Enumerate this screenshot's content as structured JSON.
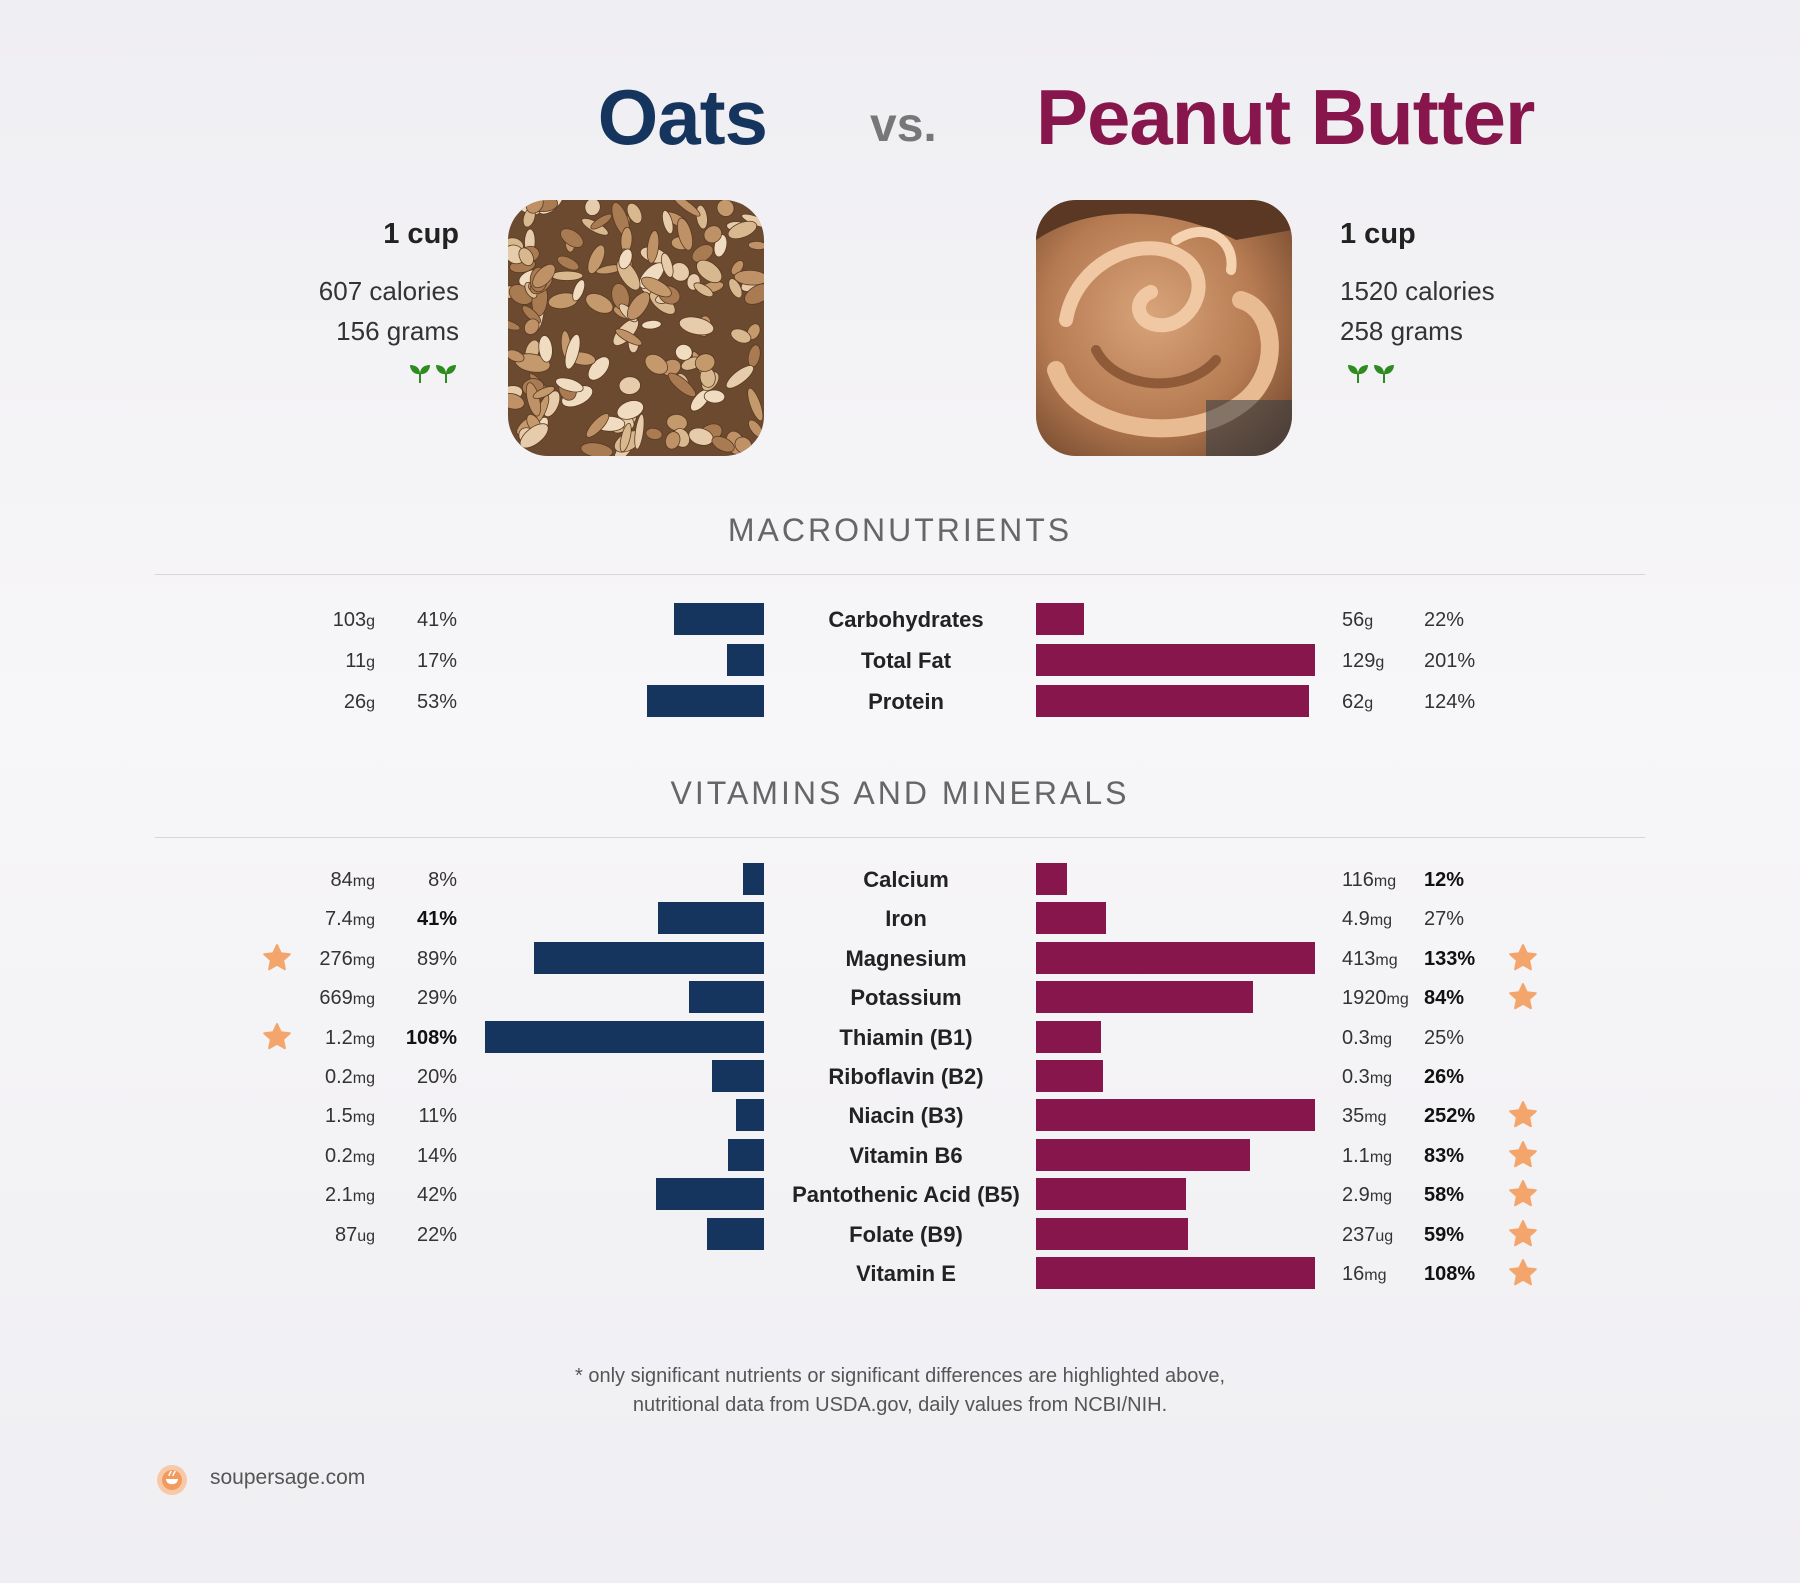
{
  "header": {
    "left_title": "Oats",
    "vs": "vs.",
    "right_title": "Peanut Butter"
  },
  "left_food": {
    "serving": "1 cup",
    "calories": "607 calories",
    "grams": "156 grams",
    "badge_icon": "sprout-icon",
    "image": "oats-photo"
  },
  "right_food": {
    "serving": "1 cup",
    "calories": "1520 calories",
    "grams": "258 grams",
    "badge_icon": "sprout-icon",
    "image": "peanut-butter-photo"
  },
  "sections": {
    "macros": "MACRONUTRIENTS",
    "vitamins": "VITAMINS AND MINERALS"
  },
  "footnote": {
    "line1": "* only significant nutrients or significant differences are highlighted above,",
    "line2": "nutritional data from USDA.gov, daily values from NCBI/NIH."
  },
  "site": "soupersage.com",
  "colors": {
    "left": "#16355e",
    "right": "#86164b",
    "star": "#f4a56c"
  },
  "chart_data": [
    {
      "type": "bar",
      "title": "MACRONUTRIENTS",
      "categories": [
        "Carbohydrates",
        "Total Fat",
        "Protein"
      ],
      "series": [
        {
          "name": "Oats",
          "values": [
            41,
            17,
            53
          ],
          "amounts": [
            "103",
            "11",
            "26"
          ],
          "units": [
            "g",
            "g",
            "g"
          ],
          "pct_labels": [
            "41%",
            "17%",
            "53%"
          ]
        },
        {
          "name": "Peanut Butter",
          "values": [
            22,
            201,
            124
          ],
          "amounts": [
            "56",
            "129",
            "62"
          ],
          "units": [
            "g",
            "g",
            "g"
          ],
          "pct_labels": [
            "22%",
            "201%",
            "124%"
          ]
        }
      ]
    },
    {
      "type": "bar",
      "title": "VITAMINS AND MINERALS",
      "categories": [
        "Calcium",
        "Iron",
        "Magnesium",
        "Potassium",
        "Thiamin (B1)",
        "Riboflavin (B2)",
        "Niacin (B3)",
        "Vitamin B6",
        "Pantothenic Acid (B5)",
        "Folate (B9)",
        "Vitamin E"
      ],
      "series": [
        {
          "name": "Oats",
          "values": [
            8,
            41,
            89,
            29,
            108,
            20,
            11,
            14,
            42,
            22,
            null
          ],
          "amounts": [
            "84",
            "7.4",
            "276",
            "669",
            "1.2",
            "0.2",
            "1.5",
            "0.2",
            "2.1",
            "87",
            ""
          ],
          "units": [
            "mg",
            "mg",
            "mg",
            "mg",
            "mg",
            "mg",
            "mg",
            "mg",
            "mg",
            "ug",
            ""
          ],
          "pct_labels": [
            "8%",
            "41%",
            "89%",
            "29%",
            "108%",
            "20%",
            "11%",
            "14%",
            "42%",
            "22%",
            ""
          ],
          "bold": [
            false,
            true,
            false,
            false,
            true,
            false,
            false,
            false,
            false,
            false,
            false
          ],
          "starred": [
            false,
            false,
            true,
            false,
            true,
            false,
            false,
            false,
            false,
            false,
            false
          ]
        },
        {
          "name": "Peanut Butter",
          "values": [
            12,
            27,
            133,
            84,
            25,
            26,
            252,
            83,
            58,
            59,
            108
          ],
          "amounts": [
            "116",
            "4.9",
            "413",
            "1920",
            "0.3",
            "0.3",
            "35",
            "1.1",
            "2.9",
            "237",
            "16"
          ],
          "units": [
            "mg",
            "mg",
            "mg",
            "mg",
            "mg",
            "mg",
            "mg",
            "mg",
            "mg",
            "ug",
            "mg"
          ],
          "pct_labels": [
            "12%",
            "27%",
            "133%",
            "84%",
            "25%",
            "26%",
            "252%",
            "83%",
            "58%",
            "59%",
            "108%"
          ],
          "bold": [
            true,
            false,
            true,
            true,
            false,
            true,
            true,
            true,
            true,
            true,
            true
          ],
          "starred": [
            false,
            false,
            true,
            true,
            false,
            false,
            true,
            true,
            true,
            true,
            true
          ]
        }
      ]
    }
  ]
}
